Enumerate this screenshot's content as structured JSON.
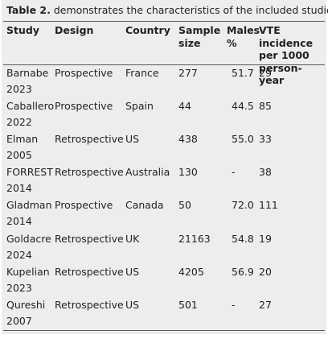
{
  "caption": {
    "label": "Table 2.",
    "text": " demonstrates the characteristics of the included studies"
  },
  "columns": {
    "study": "Study",
    "design": "Design",
    "country": "Country",
    "sample_size": "Sample size",
    "males": "Males %",
    "vte": "VTE incidence per 1000 person-year"
  },
  "rows": [
    {
      "study_name": "Barnabe",
      "study_year": "2023",
      "design": "Prospective",
      "country": "France",
      "sample_size": "277",
      "males": "51.7",
      "vte": "29"
    },
    {
      "study_name": "Caballero",
      "study_year": "2022",
      "design": "Prospective",
      "country": "Spain",
      "sample_size": "44",
      "males": "44.5",
      "vte": "85"
    },
    {
      "study_name": "Elman",
      "study_year": "2005",
      "design": "Retrospective",
      "country": "US",
      "sample_size": "438",
      "males": "55.0",
      "vte": "33"
    },
    {
      "study_name": "FORREST",
      "study_year": "2014",
      "design": "Retrospective",
      "country": "Australia",
      "sample_size": "130",
      "males": "-",
      "vte": "38"
    },
    {
      "study_name": "Gladman",
      "study_year": "2014",
      "design": "Prospective",
      "country": "Canada",
      "sample_size": "50",
      "males": "72.0",
      "vte": "111"
    },
    {
      "study_name": "Goldacre",
      "study_year": "2024",
      "design": "Retrospective",
      "country": "UK",
      "sample_size": "21163",
      "males": "54.8",
      "vte": "19"
    },
    {
      "study_name": "Kupelian",
      "study_year": "2023",
      "design": "Retrospective",
      "country": "US",
      "sample_size": "4205",
      "males": "56.9",
      "vte": "20"
    },
    {
      "study_name": "Qureshi",
      "study_year": "2007",
      "design": "Retrospective",
      "country": "US",
      "sample_size": "501",
      "males": "-",
      "vte": "27"
    }
  ]
}
